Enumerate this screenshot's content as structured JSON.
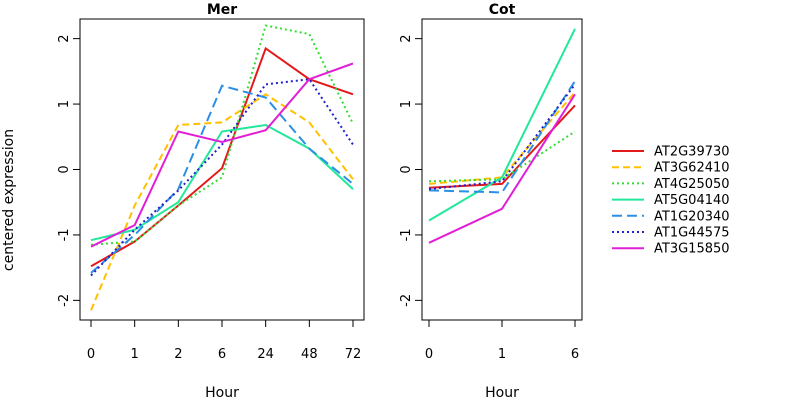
{
  "chart_data": {
    "type": "line",
    "ylabel": "centered expression",
    "ylim": [
      -2.3,
      2.3
    ],
    "yticks": [
      -2,
      -1,
      0,
      1,
      2
    ],
    "legend_position": "right",
    "series_styles": [
      {
        "name": "AT2G39730",
        "color": "#e31a1c",
        "dash": "solid"
      },
      {
        "name": "AT3G62410",
        "color": "#ffc000",
        "dash": "dashed"
      },
      {
        "name": "AT4G25050",
        "color": "#33dd33",
        "dash": "dotted"
      },
      {
        "name": "AT5G04140",
        "color": "#22e89a",
        "dash": "solid"
      },
      {
        "name": "AT1G20340",
        "color": "#2b8fe6",
        "dash": "longdash"
      },
      {
        "name": "AT1G44575",
        "color": "#2222cc",
        "dash": "dotted"
      },
      {
        "name": "AT3G15850",
        "color": "#e21fd6",
        "dash": "solid"
      }
    ],
    "panels": [
      {
        "title": "Mer",
        "xlabel": "Hour",
        "categories": [
          "0",
          "1",
          "2",
          "6",
          "24",
          "48",
          "72"
        ],
        "series": [
          {
            "name": "AT2G39730",
            "values": [
              -1.48,
              -1.1,
              -0.55,
              0.02,
              1.85,
              1.38,
              1.15
            ]
          },
          {
            "name": "AT3G62410",
            "values": [
              -2.15,
              -0.55,
              0.68,
              0.72,
              1.15,
              0.72,
              -0.15
            ]
          },
          {
            "name": "AT4G25050",
            "values": [
              -1.15,
              -1.1,
              -0.55,
              -0.12,
              2.2,
              2.07,
              0.7
            ]
          },
          {
            "name": "AT5G04140",
            "values": [
              -1.08,
              -0.92,
              -0.5,
              0.58,
              0.68,
              0.32,
              -0.3
            ]
          },
          {
            "name": "AT1G20340",
            "values": [
              -1.58,
              -1.0,
              -0.3,
              1.28,
              1.1,
              0.32,
              -0.22
            ]
          },
          {
            "name": "AT1G44575",
            "values": [
              -1.62,
              -0.92,
              -0.32,
              0.38,
              1.3,
              1.38,
              0.38
            ]
          },
          {
            "name": "AT3G15850",
            "values": [
              -1.18,
              -0.85,
              0.58,
              0.42,
              0.6,
              1.38,
              1.62
            ]
          }
        ]
      },
      {
        "title": "Cot",
        "xlabel": "Hour",
        "categories": [
          "0",
          "1",
          "6"
        ],
        "series": [
          {
            "name": "AT2G39730",
            "values": [
              -0.28,
              -0.22,
              0.98
            ]
          },
          {
            "name": "AT3G62410",
            "values": [
              -0.22,
              -0.12,
              1.18
            ]
          },
          {
            "name": "AT4G25050",
            "values": [
              -0.18,
              -0.15,
              0.58
            ]
          },
          {
            "name": "AT5G04140",
            "values": [
              -0.78,
              -0.12,
              2.15
            ]
          },
          {
            "name": "AT1G20340",
            "values": [
              -0.32,
              -0.35,
              1.35
            ]
          },
          {
            "name": "AT1G44575",
            "values": [
              -0.3,
              -0.18,
              1.3
            ]
          },
          {
            "name": "AT3G15850",
            "values": [
              -1.12,
              -0.6,
              1.15
            ]
          }
        ]
      }
    ]
  }
}
